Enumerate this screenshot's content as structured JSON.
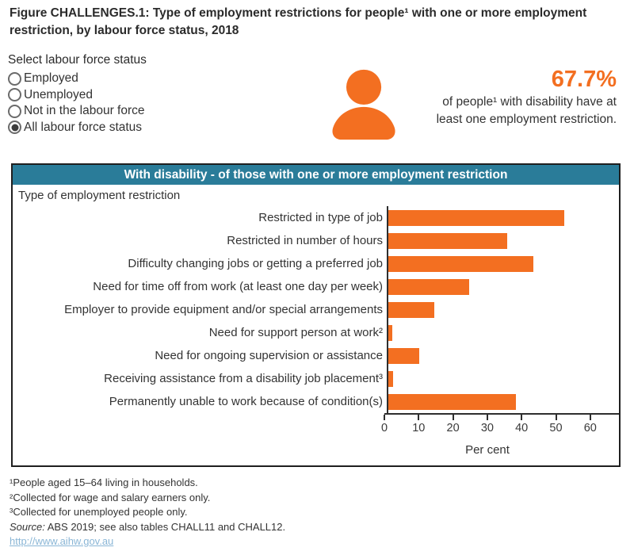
{
  "title": "Figure CHALLENGES.1: Type of employment restrictions for people¹ with one or more employment restriction, by labour force status, 2018",
  "filter": {
    "label": "Select labour force status",
    "options": [
      {
        "label": "Employed",
        "selected": false
      },
      {
        "label": "Unemployed",
        "selected": false
      },
      {
        "label": "Not in the labour force",
        "selected": false
      },
      {
        "label": "All labour force status",
        "selected": true
      }
    ]
  },
  "stat": {
    "icon": "person-icon",
    "value": "67.7%",
    "description_line1": "of people¹ with disability have at",
    "description_line2": "least one employment restriction."
  },
  "chart_data": {
    "type": "bar",
    "orientation": "horizontal",
    "panel_title": "With disability - of those with one or more employment restriction",
    "category_axis_title": "Type of employment restriction",
    "categories": [
      "Restricted in type of job",
      "Restricted in number of hours",
      "Difficulty changing jobs or getting a preferred job",
      "Need for time off from work (at least one day per week)",
      "Employer to provide equipment and/or special arrangements",
      "Need for support person at work²",
      "Need for ongoing supervision or assistance",
      "Receiving assistance from a disability job placement³",
      "Permanently unable to work because of condition(s)"
    ],
    "values": [
      51.3,
      34.6,
      42.2,
      23.5,
      13.5,
      1.2,
      9.0,
      1.5,
      37.1
    ],
    "xlabel": "Per cent",
    "xticks": [
      0,
      10,
      20,
      30,
      40,
      50,
      60
    ],
    "xlim": [
      0,
      67
    ],
    "grid": false,
    "legend": "none",
    "bar_color": "#F36F21"
  },
  "footnotes": [
    "¹People aged 15–64 living in households.",
    "²Collected for wage and salary earners only.",
    "³Collected for unemployed people only."
  ],
  "source": {
    "prefix": "Source:",
    "text": " ABS 2019; see also tables CHALL11 and CHALL12."
  },
  "link": "http://www.aihw.gov.au",
  "colors": {
    "accent_orange": "#F36F21",
    "header_teal": "#2A7C99",
    "link_blue": "#8AB6D6",
    "text_dark": "#2E2E2E"
  }
}
